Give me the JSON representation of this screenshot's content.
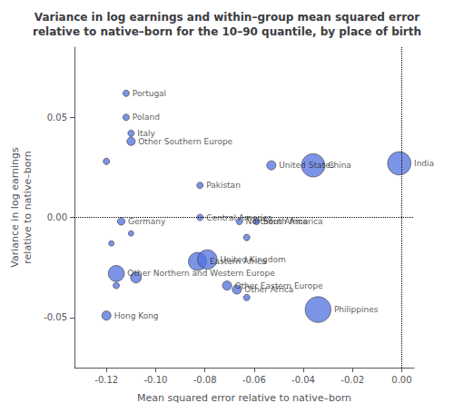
{
  "chart_data": {
    "type": "scatter",
    "title": "Variance in log earnings and within–group mean squared error\nrelative to native–born for the 10–90 quantile, by place of birth",
    "xlabel": "Mean squared error relative to native–born",
    "ylabel": "Variance in log earnings\nrelative to native–born",
    "xlim": [
      -0.133,
      0.005
    ],
    "ylim": [
      -0.075,
      0.085
    ],
    "xticks": [
      -0.12,
      {
        "value": -0.1,
        "label": "-0.10"
      },
      -0.08,
      -0.06,
      -0.04,
      -0.02,
      {
        "value": 0.0,
        "label": "0.00"
      }
    ],
    "yticks": [
      -0.05,
      {
        "value": 0.0,
        "label": "0.00"
      },
      0.05
    ],
    "grid": false,
    "hline": 0.0,
    "vline": 0.0,
    "labels": [
      "Portugal",
      "Poland",
      "Italy",
      "Other Southern Europe",
      null,
      "Pakistan",
      "Central America",
      "Germany",
      null,
      null,
      "Eastern Africa",
      "Other Northern and Western Europe",
      null,
      null,
      "Northern Africa",
      "South America",
      null,
      "United Kingdom",
      "Other Eastern Europe",
      "Other Africa",
      null,
      "United States",
      "China",
      "Philippines",
      "India",
      "Hong Kong"
    ],
    "x": [
      -0.112,
      -0.112,
      -0.11,
      -0.11,
      -0.12,
      -0.082,
      -0.082,
      -0.114,
      -0.11,
      -0.118,
      -0.083,
      -0.116,
      -0.108,
      -0.116,
      -0.066,
      -0.059,
      -0.063,
      -0.079,
      -0.071,
      -0.067,
      -0.063,
      -0.053,
      -0.036,
      -0.034,
      -0.001,
      -0.12
    ],
    "values": [
      0.062,
      0.05,
      0.042,
      0.038,
      0.028,
      0.016,
      0.0,
      -0.002,
      -0.008,
      -0.013,
      -0.022,
      -0.028,
      -0.03,
      -0.034,
      -0.002,
      -0.002,
      -0.01,
      -0.021,
      -0.034,
      -0.036,
      -0.04,
      0.026,
      0.026,
      -0.046,
      0.027,
      -0.049
    ],
    "sizes": [
      2.5,
      2.5,
      2.5,
      3.5,
      2.5,
      2.5,
      2.5,
      3.0,
      2.0,
      2.0,
      10.0,
      8.5,
      5.0,
      2.5,
      2.5,
      2.5,
      2.5,
      11.0,
      4.0,
      4.0,
      2.5,
      4.0,
      14.0,
      16.0,
      14.0,
      4.0
    ]
  }
}
